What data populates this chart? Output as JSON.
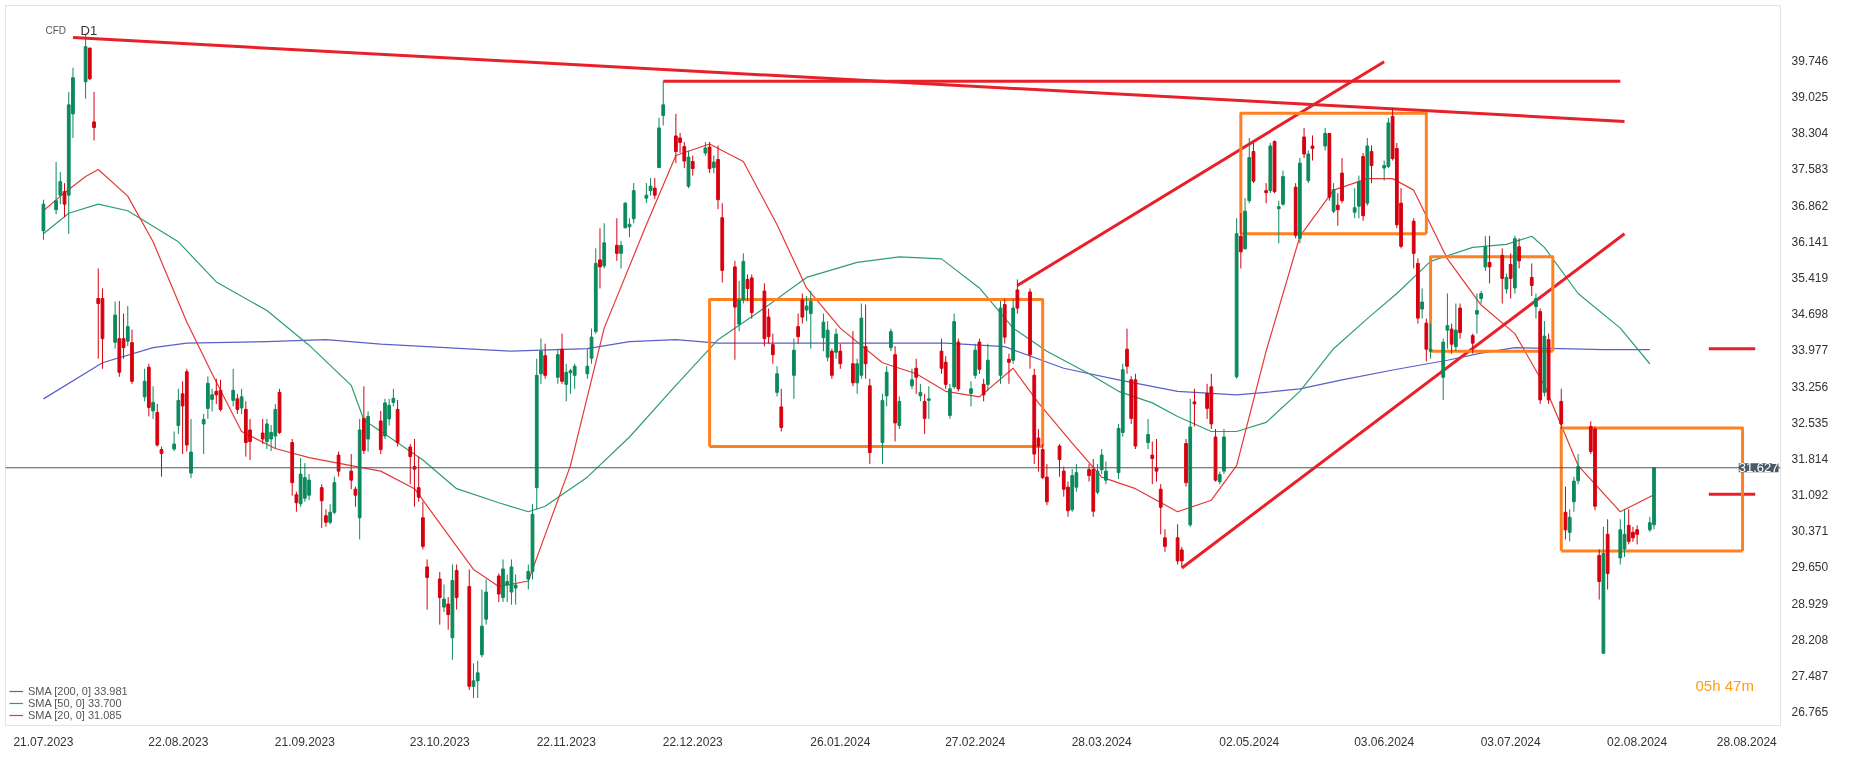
{
  "chart_data": {
    "type": "candlestick",
    "annotations": [
      "CFD",
      "D1",
      "05h 47m"
    ],
    "x": [
      "2023-07-21",
      "2023-07-24",
      "2023-07-25",
      "2023-07-26",
      "2023-07-27",
      "2023-07-28",
      "2023-07-31",
      "2023-08-01",
      "2023-08-02",
      "2023-08-03",
      "2023-08-04",
      "2023-08-07",
      "2023-08-08",
      "2023-08-09",
      "2023-08-10",
      "2023-08-11",
      "2023-08-14",
      "2023-08-15",
      "2023-08-16",
      "2023-08-17",
      "2023-08-18",
      "2023-08-21",
      "2023-08-22",
      "2023-08-23",
      "2023-08-24",
      "2023-08-25",
      "2023-08-28",
      "2023-08-29",
      "2023-08-30",
      "2023-08-31",
      "2023-09-01",
      "2023-09-04",
      "2023-09-05",
      "2023-09-06",
      "2023-09-07",
      "2023-09-08",
      "2023-09-11",
      "2023-09-12",
      "2023-09-13",
      "2023-09-14",
      "2023-09-15",
      "2023-09-18",
      "2023-09-19",
      "2023-09-20",
      "2023-09-21",
      "2023-09-22",
      "2023-09-25",
      "2023-09-26",
      "2023-09-27",
      "2023-09-28",
      "2023-09-29",
      "2023-10-02",
      "2023-10-03",
      "2023-10-04",
      "2023-10-05",
      "2023-10-06",
      "2023-10-09",
      "2023-10-10",
      "2023-10-11",
      "2023-10-12",
      "2023-10-13",
      "2023-10-16",
      "2023-10-17",
      "2023-10-18",
      "2023-10-19",
      "2023-10-20",
      "2023-10-23",
      "2023-10-24",
      "2023-10-25",
      "2023-10-26",
      "2023-10-27",
      "2023-10-30",
      "2023-10-31",
      "2023-11-01",
      "2023-11-02",
      "2023-11-03",
      "2023-11-06",
      "2023-11-07",
      "2023-11-08",
      "2023-11-09",
      "2023-11-10",
      "2023-11-13",
      "2023-11-14",
      "2023-11-15",
      "2023-11-16",
      "2023-11-17",
      "2023-11-20",
      "2023-11-21",
      "2023-11-22",
      "2023-11-23",
      "2023-11-24",
      "2023-11-27",
      "2023-11-28",
      "2023-11-29",
      "2023-11-30",
      "2023-12-01",
      "2023-12-04",
      "2023-12-05",
      "2023-12-06",
      "2023-12-07",
      "2023-12-08",
      "2023-12-11",
      "2023-12-12",
      "2023-12-13",
      "2023-12-14",
      "2023-12-15",
      "2023-12-18",
      "2023-12-19",
      "2023-12-20",
      "2023-12-21",
      "2023-12-22",
      "2023-12-25",
      "2023-12-26",
      "2023-12-27",
      "2023-12-28",
      "2023-12-29",
      "2024-01-01",
      "2024-01-02",
      "2024-01-03",
      "2024-01-04",
      "2024-01-05",
      "2024-01-08",
      "2024-01-09",
      "2024-01-10",
      "2024-01-11",
      "2024-01-12",
      "2024-01-15",
      "2024-01-16",
      "2024-01-17",
      "2024-01-18",
      "2024-01-19",
      "2024-01-22",
      "2024-01-23",
      "2024-01-24",
      "2024-01-25",
      "2024-01-26",
      "2024-01-29",
      "2024-01-30",
      "2024-01-31",
      "2024-02-01",
      "2024-02-02",
      "2024-02-05",
      "2024-02-06",
      "2024-02-07",
      "2024-02-08",
      "2024-02-09",
      "2024-02-12",
      "2024-02-13",
      "2024-02-14",
      "2024-02-15",
      "2024-02-16",
      "2024-02-19",
      "2024-02-20",
      "2024-02-21",
      "2024-02-22",
      "2024-02-23",
      "2024-02-26",
      "2024-02-27",
      "2024-02-28",
      "2024-02-29",
      "2024-03-01",
      "2024-03-04",
      "2024-03-05",
      "2024-03-06",
      "2024-03-07",
      "2024-03-08",
      "2024-03-11",
      "2024-03-12",
      "2024-03-13",
      "2024-03-14",
      "2024-03-15",
      "2024-03-18",
      "2024-03-19",
      "2024-03-20",
      "2024-03-21",
      "2024-03-22",
      "2024-03-25",
      "2024-03-26",
      "2024-03-27",
      "2024-03-28",
      "2024-03-29",
      "2024-04-01",
      "2024-04-02",
      "2024-04-03",
      "2024-04-04",
      "2024-04-05",
      "2024-04-08",
      "2024-04-09",
      "2024-04-10",
      "2024-04-11",
      "2024-04-12",
      "2024-04-15",
      "2024-04-16",
      "2024-04-17",
      "2024-04-18",
      "2024-04-19",
      "2024-04-22",
      "2024-04-23",
      "2024-04-24",
      "2024-04-25",
      "2024-04-26",
      "2024-04-29",
      "2024-04-30",
      "2024-05-01",
      "2024-05-02",
      "2024-05-03",
      "2024-05-06",
      "2024-05-07",
      "2024-05-08",
      "2024-05-09",
      "2024-05-10",
      "2024-05-13",
      "2024-05-14",
      "2024-05-15",
      "2024-05-16",
      "2024-05-17",
      "2024-05-20",
      "2024-05-21",
      "2024-05-22",
      "2024-05-23",
      "2024-05-24",
      "2024-05-27",
      "2024-05-28",
      "2024-05-29",
      "2024-05-30",
      "2024-05-31",
      "2024-06-03",
      "2024-06-04",
      "2024-06-05",
      "2024-06-06",
      "2024-06-07",
      "2024-06-10",
      "2024-06-11",
      "2024-06-12",
      "2024-06-13",
      "2024-06-14",
      "2024-06-17",
      "2024-06-18",
      "2024-06-19",
      "2024-06-20",
      "2024-06-21",
      "2024-06-24",
      "2024-06-25",
      "2024-06-26",
      "2024-06-27",
      "2024-06-28",
      "2024-07-01",
      "2024-07-02",
      "2024-07-03",
      "2024-07-04",
      "2024-07-05",
      "2024-07-08",
      "2024-07-09",
      "2024-07-10",
      "2024-07-11",
      "2024-07-12",
      "2024-07-15",
      "2024-07-16",
      "2024-07-17",
      "2024-07-18",
      "2024-07-19",
      "2024-07-22",
      "2024-07-23",
      "2024-07-24",
      "2024-07-25",
      "2024-07-26",
      "2024-07-29",
      "2024-07-30",
      "2024-07-31",
      "2024-08-01",
      "2024-08-02",
      "2024-08-05",
      "2024-08-06"
    ],
    "ohlc": [
      [
        36.35,
        36.97,
        36.17,
        36.88
      ],
      [
        36.77,
        37.72,
        36.68,
        36.95
      ],
      [
        37.06,
        37.52,
        36.88,
        37.33
      ],
      [
        37.13,
        37.3,
        36.62,
        36.88
      ],
      [
        37.06,
        39.12,
        36.29,
        38.86
      ],
      [
        38.68,
        39.6,
        38.2,
        39.4
      ],
      [
        39.32,
        40.25,
        38.98,
        40.02
      ],
      [
        39.99,
        40.0,
        39.35,
        39.38
      ],
      [
        38.52,
        39.12,
        38.15,
        38.41
      ],
      [
        35.0,
        35.6,
        33.8,
        34.9
      ],
      [
        35.0,
        35.2,
        33.6,
        34.2
      ],
      [
        34.13,
        34.94,
        34.0,
        34.67
      ],
      [
        34.2,
        34.95,
        33.44,
        33.53
      ],
      [
        34.2,
        34.7,
        33.8,
        34.02
      ],
      [
        34.15,
        34.85,
        34.05,
        34.44
      ],
      [
        34.12,
        34.38,
        33.3,
        33.35
      ],
      [
        33.04,
        33.6,
        32.95,
        33.35
      ],
      [
        33.63,
        33.7,
        32.65,
        32.83
      ],
      [
        32.76,
        33.25,
        32.6,
        32.93
      ],
      [
        32.73,
        32.9,
        32.05,
        32.08
      ],
      [
        31.99,
        32.05,
        31.45,
        31.91
      ],
      [
        32.0,
        32.35,
        31.96,
        32.1
      ],
      [
        32.47,
        33.2,
        32.3,
        32.97
      ],
      [
        33.1,
        33.35,
        31.9,
        32.86
      ],
      [
        33.54,
        33.6,
        31.95,
        32.08
      ],
      [
        31.52,
        32.6,
        31.42,
        31.94
      ],
      [
        32.5,
        32.7,
        31.9,
        32.59
      ],
      [
        32.81,
        33.45,
        32.6,
        33.31
      ],
      [
        32.99,
        33.2,
        32.75,
        33.08
      ],
      [
        33.15,
        33.4,
        32.9,
        33.08
      ],
      [
        33.17,
        33.38,
        32.75,
        32.79
      ],
      [
        32.97,
        33.6,
        32.85,
        33.17
      ],
      [
        33.0,
        33.1,
        32.7,
        32.79
      ],
      [
        32.82,
        33.2,
        32.7,
        33.04
      ],
      [
        32.79,
        32.95,
        31.85,
        32.13
      ],
      [
        32.38,
        32.6,
        31.78,
        32.15
      ],
      [
        32.32,
        32.6,
        32.1,
        32.2
      ],
      [
        32.15,
        32.6,
        32.0,
        32.5
      ],
      [
        32.2,
        32.48,
        31.96,
        32.33
      ],
      [
        32.26,
        32.9,
        32.0,
        32.79
      ],
      [
        33.13,
        33.2,
        32.3,
        32.33
      ],
      [
        32.13,
        32.2,
        31.07,
        31.33
      ],
      [
        31.09,
        31.15,
        30.75,
        30.93
      ],
      [
        30.91,
        31.82,
        30.85,
        31.5
      ],
      [
        31.02,
        31.72,
        30.95,
        31.43
      ],
      [
        31.08,
        31.5,
        30.98,
        31.38
      ],
      [
        31.23,
        31.3,
        30.43,
        30.97
      ],
      [
        30.67,
        30.8,
        30.45,
        30.54
      ],
      [
        30.54,
        30.9,
        30.5,
        30.74
      ],
      [
        30.74,
        31.45,
        30.7,
        31.33
      ],
      [
        31.88,
        31.95,
        31.45,
        31.56
      ],
      [
        31.56,
        31.9,
        31.2,
        31.38
      ],
      [
        31.2,
        31.25,
        30.85,
        31.08
      ],
      [
        30.63,
        32.6,
        30.2,
        32.38
      ],
      [
        32.61,
        33.25,
        31.9,
        31.97
      ],
      [
        32.2,
        32.75,
        31.95,
        32.65
      ],
      [
        32.56,
        32.76,
        31.9,
        31.99
      ],
      [
        32.26,
        33.0,
        32.2,
        32.92
      ],
      [
        32.6,
        33.0,
        32.47,
        32.87
      ],
      [
        32.93,
        33.2,
        32.85,
        33.01
      ],
      [
        32.79,
        32.98,
        32.05,
        32.13
      ],
      [
        32.04,
        32.1,
        31.3,
        31.85
      ],
      [
        31.65,
        32.2,
        30.85,
        31.6
      ],
      [
        31.23,
        31.85,
        30.95,
        31.04
      ],
      [
        30.63,
        30.95,
        30.0,
        30.06
      ],
      [
        29.65,
        29.8,
        28.8,
        29.44
      ],
      [
        29.41,
        29.55,
        28.5,
        29.04
      ],
      [
        28.85,
        29.3,
        28.75,
        29.01
      ],
      [
        28.91,
        29.05,
        28.4,
        28.7
      ],
      [
        28.24,
        29.7,
        27.8,
        29.38
      ],
      [
        29.58,
        29.7,
        28.8,
        29.04
      ],
      [
        29.26,
        29.6,
        27.2,
        27.27
      ],
      [
        27.27,
        27.73,
        27.04,
        27.38
      ],
      [
        27.38,
        27.78,
        27.04,
        27.54
      ],
      [
        27.9,
        29.2,
        27.85,
        28.47
      ],
      [
        28.61,
        29.4,
        28.5,
        29.15
      ],
      [
        29.47,
        29.52,
        28.95,
        29.11
      ],
      [
        29.04,
        29.8,
        28.95,
        29.61
      ],
      [
        29.29,
        29.5,
        28.95,
        29.36
      ],
      [
        29.15,
        29.8,
        28.9,
        29.65
      ],
      [
        29.23,
        29.5,
        28.9,
        29.29
      ],
      [
        29.41,
        29.7,
        29.2,
        29.56
      ],
      [
        29.56,
        30.9,
        29.4,
        30.7
      ],
      [
        31.23,
        33.8,
        30.8,
        33.47
      ],
      [
        33.5,
        34.2,
        33.3,
        33.95
      ],
      [
        33.86,
        34.1,
        33.4,
        33.47
      ],
      [
        33.43,
        34.0,
        33.3,
        33.88
      ],
      [
        33.99,
        34.3,
        33.3,
        33.35
      ],
      [
        33.29,
        33.7,
        32.95,
        33.53
      ],
      [
        33.52,
        33.6,
        33.1,
        33.56
      ],
      [
        33.47,
        33.7,
        33.2,
        33.65
      ],
      [
        33.5,
        34.0,
        33.4,
        33.65
      ],
      [
        33.81,
        34.4,
        33.7,
        34.23
      ],
      [
        34.34,
        36.0,
        34.3,
        35.7
      ],
      [
        35.77,
        36.4,
        35.2,
        35.63
      ],
      [
        35.65,
        36.5,
        35.6,
        36.11
      ],
      [
        36.06,
        36.6,
        35.75,
        35.9
      ],
      [
        35.9,
        36.15,
        35.6,
        36.06
      ],
      [
        36.41,
        36.92,
        36.4,
        36.9
      ],
      [
        36.43,
        36.6,
        36.22,
        36.48
      ],
      [
        36.59,
        37.3,
        36.5,
        37.15
      ],
      [
        37.0,
        37.3,
        36.9,
        37.06
      ],
      [
        37.15,
        37.4,
        37.05,
        37.24
      ],
      [
        37.2,
        37.4,
        36.98,
        37.06
      ],
      [
        37.61,
        38.6,
        37.6,
        38.4
      ],
      [
        38.65,
        39.33,
        38.45,
        38.86
      ],
      [
        38.24,
        38.68,
        37.7,
        37.93
      ],
      [
        38.2,
        38.3,
        37.9,
        38.11
      ],
      [
        38.03,
        38.12,
        37.6,
        37.74
      ],
      [
        37.24,
        37.95,
        37.2,
        37.82
      ],
      [
        37.73,
        37.85,
        37.45,
        37.59
      ],
      [
        37.9,
        38.12,
        37.85,
        38.0
      ],
      [
        38.02,
        38.12,
        37.5,
        37.59
      ],
      [
        37.61,
        37.85,
        37.5,
        37.72
      ],
      [
        37.77,
        38.05,
        36.78,
        36.97
      ],
      [
        36.61,
        36.9,
        35.32,
        35.56
      ],
      [
        35.63,
        35.75,
        33.78,
        34.83
      ],
      [
        34.49,
        35.35,
        34.35,
        34.97
      ],
      [
        34.97,
        35.9,
        34.9,
        35.74
      ],
      [
        35.38,
        35.48,
        34.95,
        35.2
      ],
      [
        35.41,
        35.48,
        34.6,
        34.72
      ],
      [
        35.15,
        35.3,
        34.05,
        34.2
      ],
      [
        34.63,
        34.8,
        34.1,
        34.24
      ],
      [
        34.08,
        34.3,
        33.7,
        33.88
      ],
      [
        33.13,
        33.65,
        33.05,
        33.5
      ],
      [
        32.84,
        33.2,
        32.35,
        32.43
      ],
      [
        33.47,
        34.2,
        33.0,
        33.97
      ],
      [
        34.44,
        34.7,
        34.1,
        34.24
      ],
      [
        34.97,
        35.1,
        34.5,
        34.63
      ],
      [
        34.77,
        35.05,
        34.55,
        34.85
      ],
      [
        34.7,
        35.15,
        34.0,
        34.94
      ],
      [
        34.22,
        34.7,
        33.95,
        34.53
      ],
      [
        33.83,
        34.55,
        33.75,
        34.37
      ],
      [
        33.95,
        34.0,
        33.4,
        33.47
      ],
      [
        33.93,
        34.4,
        33.8,
        34.29
      ],
      [
        33.95,
        34.1,
        33.6,
        33.7
      ],
      [
        33.7,
        34.35,
        33.25,
        33.32
      ],
      [
        33.32,
        33.8,
        33.1,
        33.7
      ],
      [
        33.47,
        34.9,
        33.4,
        34.61
      ],
      [
        34.04,
        34.88,
        33.4,
        33.7
      ],
      [
        33.26,
        33.4,
        31.7,
        31.93
      ],
      [
        32.13,
        33.1,
        31.7,
        32.97
      ],
      [
        33.06,
        33.65,
        32.85,
        33.53
      ],
      [
        34.02,
        34.4,
        33.95,
        34.34
      ],
      [
        33.88,
        34.05,
        32.15,
        32.52
      ],
      [
        32.47,
        33.05,
        32.4,
        32.95
      ],
      [
        33.26,
        33.6,
        33.2,
        33.38
      ],
      [
        33.61,
        33.8,
        33.1,
        33.43
      ],
      [
        33.06,
        33.3,
        32.95,
        33.13
      ],
      [
        32.95,
        33.1,
        32.3,
        32.61
      ],
      [
        32.97,
        33.25,
        32.6,
        33.0
      ],
      [
        33.95,
        34.2,
        33.5,
        33.61
      ],
      [
        33.73,
        33.85,
        33.2,
        33.29
      ],
      [
        32.67,
        33.3,
        32.6,
        33.2
      ],
      [
        33.24,
        34.7,
        33.2,
        34.54
      ],
      [
        34.13,
        34.2,
        33.15,
        33.2
      ],
      [
        33.11,
        33.35,
        32.85,
        33.2
      ],
      [
        33.47,
        34.1,
        33.4,
        33.97
      ],
      [
        34.13,
        34.2,
        33.5,
        33.59
      ],
      [
        33.29,
        33.4,
        32.95,
        33.08
      ],
      [
        33.29,
        34.1,
        33.15,
        33.77
      ],
      [
        33.47,
        34.95,
        33.3,
        34.81
      ],
      [
        34.88,
        35.0,
        34.1,
        34.23
      ],
      [
        33.79,
        33.9,
        33.3,
        33.73
      ],
      [
        33.77,
        35.0,
        33.7,
        34.81
      ],
      [
        35.17,
        35.38,
        34.7,
        34.81
      ],
      [
        35.13,
        35.2,
        33.6,
        33.88
      ],
      [
        33.47,
        33.6,
        31.7,
        31.9
      ],
      [
        32.22,
        32.4,
        31.55,
        32.06
      ],
      [
        31.99,
        32.1,
        31.4,
        31.43
      ],
      [
        31.44,
        31.7,
        30.88,
        30.95
      ],
      [
        32.06,
        32.1,
        31.45,
        31.79
      ],
      [
        31.56,
        31.65,
        31.05,
        31.2
      ],
      [
        31.24,
        31.35,
        30.65,
        30.77
      ],
      [
        30.79,
        31.6,
        30.75,
        31.47
      ],
      [
        31.24,
        31.7,
        31.15,
        31.53
      ],
      [
        31.59,
        31.7,
        31.35,
        31.47
      ],
      [
        31.59,
        31.8,
        30.65,
        30.76
      ],
      [
        31.14,
        31.7,
        31.1,
        31.56
      ],
      [
        31.59,
        32.0,
        31.5,
        31.88
      ],
      [
        31.38,
        31.75,
        31.3,
        31.56
      ],
      [
        31.53,
        32.5,
        31.4,
        32.41
      ],
      [
        32.33,
        33.7,
        32.25,
        33.58
      ],
      [
        33.99,
        34.4,
        33.5,
        33.65
      ],
      [
        33.38,
        33.45,
        32.5,
        32.61
      ],
      [
        33.38,
        33.5,
        32.0,
        32.06
      ],
      [
        32.13,
        32.6,
        32.0,
        32.29
      ],
      [
        31.88,
        32.15,
        31.3,
        31.81
      ],
      [
        31.63,
        32.2,
        31.35,
        31.56
      ],
      [
        31.2,
        31.3,
        30.3,
        30.84
      ],
      [
        30.23,
        30.4,
        29.95,
        30.06
      ],
      [
        30.23,
        30.5,
        29.7,
        29.77
      ],
      [
        29.99,
        30.05,
        29.65,
        29.77
      ],
      [
        32.11,
        32.2,
        31.25,
        31.33
      ],
      [
        30.49,
        33.0,
        30.45,
        32.44
      ],
      [
        32.94,
        33.2,
        32.45,
        32.9
      ],
      [
        33.11,
        33.3,
        32.6,
        32.81
      ],
      [
        33.24,
        33.5,
        32.4,
        32.5
      ],
      [
        32.24,
        32.4,
        31.35,
        31.38
      ],
      [
        31.35,
        31.55,
        31.3,
        31.49
      ],
      [
        31.56,
        32.4,
        31.5,
        32.24
      ],
      [
        33.44,
        36.6,
        33.4,
        36.29
      ],
      [
        36.24,
        36.7,
        35.6,
        35.93
      ],
      [
        35.99,
        37.0,
        35.98,
        36.74
      ],
      [
        36.95,
        38.2,
        36.9,
        37.81
      ],
      [
        37.93,
        38.1,
        37.3,
        37.34
      ],
      [
        37.15,
        37.3,
        36.9,
        37.11
      ],
      [
        37.15,
        38.1,
        37.1,
        38.04
      ],
      [
        38.13,
        38.15,
        37.1,
        37.13
      ],
      [
        36.79,
        36.95,
        36.1,
        36.83
      ],
      [
        36.88,
        37.55,
        36.85,
        37.43
      ],
      [
        37.22,
        37.3,
        36.2,
        36.26
      ],
      [
        36.2,
        37.8,
        36.1,
        37.7
      ],
      [
        38.22,
        38.4,
        37.8,
        37.88
      ],
      [
        37.35,
        37.95,
        37.3,
        37.88
      ],
      [
        38.04,
        38.25,
        37.75,
        37.99
      ],
      [
        38.04,
        38.4,
        37.95,
        38.29
      ],
      [
        38.29,
        38.3,
        36.95,
        37.02
      ],
      [
        36.74,
        37.3,
        36.7,
        37.17
      ],
      [
        36.86,
        37.1,
        36.45,
        36.77
      ],
      [
        37.5,
        37.8,
        36.9,
        36.95
      ],
      [
        36.72,
        37.2,
        36.6,
        36.81
      ],
      [
        36.84,
        37.45,
        36.6,
        37.33
      ],
      [
        37.83,
        37.9,
        36.55,
        36.65
      ],
      [
        36.9,
        38.2,
        36.85,
        38.04
      ],
      [
        37.93,
        38.05,
        37.3,
        37.65
      ],
      [
        37.6,
        37.75,
        37.35,
        37.65
      ],
      [
        37.63,
        38.6,
        37.6,
        38.5
      ],
      [
        38.63,
        38.8,
        37.75,
        37.79
      ],
      [
        37.99,
        38.1,
        36.4,
        36.47
      ],
      [
        36.9,
        37.2,
        36.0,
        36.04
      ],
      [
        36.54,
        36.6,
        35.6,
        35.9
      ],
      [
        35.7,
        35.8,
        34.5,
        34.61
      ],
      [
        34.79,
        35.2,
        34.6,
        34.93
      ],
      [
        34.51,
        34.6,
        33.75,
        33.99
      ],
      [
        33.95,
        34.5,
        33.8,
        33.99
      ],
      [
        33.43,
        34.2,
        32.98,
        34.13
      ],
      [
        34.37,
        35.1,
        34.0,
        34.46
      ],
      [
        34.39,
        34.5,
        33.9,
        34.09
      ],
      [
        34.04,
        34.9,
        33.95,
        34.37
      ],
      [
        34.81,
        34.9,
        34.2,
        34.32
      ],
      [
        34.26,
        34.3,
        33.9,
        34.11
      ],
      [
        34.69,
        35.1,
        34.3,
        34.76
      ],
      [
        35.0,
        35.15,
        34.9,
        35.1
      ],
      [
        35.63,
        36.25,
        35.55,
        36.03
      ],
      [
        35.72,
        36.25,
        35.3,
        35.63
      ],
      [
        35.86,
        36.0,
        34.9,
        35.4
      ],
      [
        35.19,
        35.5,
        35.1,
        35.42
      ],
      [
        35.68,
        35.9,
        35.0,
        35.4
      ],
      [
        35.21,
        36.25,
        35.1,
        36.19
      ],
      [
        36.03,
        36.2,
        35.6,
        35.75
      ],
      [
        35.42,
        35.7,
        35.05,
        35.26
      ],
      [
        34.84,
        35.1,
        34.6,
        35.0
      ],
      [
        34.74,
        34.8,
        32.9,
        32.98
      ],
      [
        33.13,
        34.55,
        33.05,
        34.25
      ],
      [
        34.18,
        34.3,
        32.9,
        32.98
      ],
      [
        32.95,
        33.2,
        32.4,
        32.5
      ],
      [
        30.74,
        31.25,
        30.2,
        30.39
      ],
      [
        30.34,
        30.8,
        30.16,
        30.64
      ],
      [
        30.95,
        31.45,
        30.75,
        31.36
      ],
      [
        31.37,
        31.9,
        31.3,
        31.65
      ],
      [
        32.45,
        32.55,
        31.9,
        31.95
      ],
      [
        32.4,
        32.45,
        30.78,
        30.86
      ],
      [
        29.88,
        30.0,
        29.0,
        29.36
      ],
      [
        27.93,
        30.45,
        27.92,
        29.92
      ],
      [
        30.3,
        30.6,
        29.2,
        29.52
      ],
      [
        29.83,
        30.6,
        29.7,
        30.39
      ],
      [
        30.01,
        30.8,
        29.85,
        30.3
      ],
      [
        30.48,
        30.8,
        30.1,
        30.16
      ],
      [
        30.34,
        30.45,
        30.15,
        30.23
      ],
      [
        30.39,
        30.48,
        30.1,
        30.3
      ],
      [
        30.39,
        30.65,
        30.35,
        30.53
      ],
      [
        30.49,
        31.627,
        30.4,
        31.627
      ]
    ],
    "series": [
      {
        "name": "SMA [200, 0] 33.981",
        "type": "line",
        "color": "#5a5fc8",
        "x": [
          "2023-07-21",
          "2023-08-04",
          "2023-08-16",
          "2023-08-24",
          "2023-09-12",
          "2023-09-26",
          "2023-10-09",
          "2023-11-09",
          "2023-11-27",
          "2023-12-07",
          "2023-12-18",
          "2023-12-28",
          "2024-01-11",
          "2024-01-24",
          "2024-02-07",
          "2024-02-20",
          "2024-03-05",
          "2024-03-19",
          "2024-04-01",
          "2024-04-15",
          "2024-04-29",
          "2024-05-06",
          "2024-05-14",
          "2024-05-24",
          "2024-06-06",
          "2024-06-18",
          "2024-06-26",
          "2024-07-04",
          "2024-07-15",
          "2024-07-25",
          "2024-08-05"
        ],
        "values": [
          33.0,
          33.72,
          34.02,
          34.11,
          34.14,
          34.18,
          34.09,
          33.95,
          34.0,
          34.14,
          34.18,
          34.11,
          34.11,
          34.11,
          34.11,
          34.11,
          34.04,
          33.61,
          33.38,
          33.15,
          33.08,
          33.13,
          33.2,
          33.38,
          33.59,
          33.77,
          33.91,
          34.02,
          34.0,
          33.98,
          33.98
        ]
      },
      {
        "name": "SMA [50, 0] 33.700",
        "type": "line",
        "color": "#2e9e6e",
        "x": [
          "2023-07-21",
          "2023-07-27",
          "2023-08-03",
          "2023-08-10",
          "2023-08-22",
          "2023-08-31",
          "2023-09-12",
          "2023-09-22",
          "2023-10-02",
          "2023-10-05",
          "2023-10-11",
          "2023-10-19",
          "2023-10-27",
          "2023-11-06",
          "2023-11-13",
          "2023-11-17",
          "2023-11-27",
          "2023-12-07",
          "2023-12-18",
          "2023-12-28",
          "2024-01-09",
          "2024-01-18",
          "2024-01-30",
          "2024-02-09",
          "2024-02-19",
          "2024-02-28",
          "2024-03-07",
          "2024-03-15",
          "2024-03-25",
          "2024-04-01",
          "2024-04-09",
          "2024-04-15",
          "2024-04-23",
          "2024-04-29",
          "2024-05-06",
          "2024-05-14",
          "2024-05-22",
          "2024-05-30",
          "2024-06-06",
          "2024-06-14",
          "2024-06-24",
          "2024-07-02",
          "2024-07-08",
          "2024-07-11",
          "2024-07-19",
          "2024-07-29",
          "2024-08-05"
        ],
        "values": [
          36.29,
          36.7,
          36.88,
          36.75,
          36.13,
          35.33,
          34.76,
          34.07,
          33.27,
          32.58,
          32.24,
          31.78,
          31.21,
          30.93,
          30.75,
          30.86,
          31.44,
          32.24,
          33.27,
          34.18,
          34.87,
          35.42,
          35.72,
          35.83,
          35.79,
          35.21,
          34.41,
          33.95,
          33.5,
          33.15,
          32.92,
          32.65,
          32.35,
          32.35,
          32.53,
          33.15,
          34.0,
          34.6,
          35.1,
          35.74,
          36.02,
          36.08,
          36.24,
          36.02,
          35.1,
          34.41,
          33.7
        ]
      },
      {
        "name": "SMA [20, 0] 31.085",
        "type": "line",
        "color": "#e53935",
        "x": [
          "2023-07-21",
          "2023-07-26",
          "2023-07-31",
          "2023-08-03",
          "2023-08-10",
          "2023-08-16",
          "2023-08-24",
          "2023-08-30",
          "2023-09-06",
          "2023-09-14",
          "2023-09-22",
          "2023-10-02",
          "2023-10-09",
          "2023-10-17",
          "2023-10-25",
          "2023-10-31",
          "2023-11-06",
          "2023-11-13",
          "2023-11-17",
          "2023-11-23",
          "2023-12-01",
          "2023-12-11",
          "2023-12-18",
          "2023-12-26",
          "2024-01-03",
          "2024-01-11",
          "2024-01-18",
          "2024-01-26",
          "2024-02-05",
          "2024-02-13",
          "2024-02-20",
          "2024-02-28",
          "2024-03-07",
          "2024-03-13",
          "2024-03-21",
          "2024-03-28",
          "2024-04-05",
          "2024-04-15",
          "2024-04-23",
          "2024-04-29",
          "2024-05-06",
          "2024-05-14",
          "2024-05-22",
          "2024-05-30",
          "2024-06-05",
          "2024-06-10",
          "2024-06-18",
          "2024-06-26",
          "2024-07-04",
          "2024-07-11",
          "2024-07-19",
          "2024-07-29",
          "2024-08-06"
        ],
        "values": [
          36.75,
          37.11,
          37.43,
          37.57,
          37.04,
          36.13,
          34.53,
          33.5,
          32.35,
          32.01,
          31.83,
          31.67,
          31.56,
          31.21,
          30.29,
          29.6,
          29.26,
          29.37,
          30.29,
          31.67,
          34.41,
          36.47,
          37.85,
          38.08,
          37.73,
          36.47,
          35.21,
          34.41,
          33.72,
          33.5,
          33.15,
          33.04,
          33.61,
          32.92,
          32.12,
          31.44,
          31.21,
          30.75,
          30.98,
          31.67,
          33.95,
          36.24,
          37.16,
          37.39,
          37.39,
          37.16,
          35.79,
          34.87,
          34.3,
          33.27,
          31.67,
          30.75,
          31.09
        ]
      },
      {
        "type": "line",
        "color": "#e8202a",
        "x": [
          "2023-07-28",
          "2024-07-30"
        ],
        "values": [
          40.2,
          38.53
        ]
      },
      {
        "type": "line",
        "color": "#e8202a",
        "x": [
          "2023-12-15",
          "2024-07-29"
        ],
        "values": [
          39.33,
          39.33
        ]
      },
      {
        "type": "line",
        "color": "#e8202a",
        "x": [
          "2024-03-08",
          "2024-06-03"
        ],
        "values": [
          35.26,
          39.72
        ]
      },
      {
        "type": "line",
        "color": "#e8202a",
        "x": [
          "2024-04-16",
          "2024-07-30"
        ],
        "values": [
          29.63,
          36.29
        ]
      },
      {
        "type": "line",
        "color": "#e8202a",
        "x": [
          "2024-08-19",
          "2024-08-30"
        ],
        "values": [
          34.0,
          34.0
        ]
      },
      {
        "type": "line",
        "color": "#e8202a",
        "x": [
          "2024-08-19",
          "2024-08-30"
        ],
        "values": [
          31.1,
          31.1
        ]
      },
      {
        "type": "line",
        "color": "#ff8020",
        "x": [
          "2023-12-26",
          "2023-12-26",
          "2024-03-14",
          "2024-03-14"
        ],
        "values": [
          32.05,
          34.98,
          34.98,
          32.05
        ]
      },
      {
        "type": "line",
        "color": "#ff8020",
        "x": [
          "2023-12-26",
          "2024-03-14"
        ],
        "values": [
          32.05,
          32.05
        ]
      },
      {
        "type": "line",
        "color": "#ff8020",
        "x": [
          "2024-04-30",
          "2024-04-30",
          "2024-06-13",
          "2024-06-13"
        ],
        "values": [
          36.29,
          38.69,
          38.69,
          36.29
        ]
      },
      {
        "type": "line",
        "color": "#ff8020",
        "x": [
          "2024-04-30",
          "2024-06-13"
        ],
        "values": [
          36.29,
          36.29
        ]
      },
      {
        "type": "line",
        "color": "#ff8020",
        "x": [
          "2024-06-14",
          "2024-06-14",
          "2024-07-13",
          "2024-07-13"
        ],
        "values": [
          33.95,
          35.83,
          35.83,
          33.95
        ]
      },
      {
        "type": "line",
        "color": "#ff8020",
        "x": [
          "2024-06-14",
          "2024-07-13"
        ],
        "values": [
          33.95,
          33.95
        ]
      },
      {
        "type": "line",
        "color": "#ff8020",
        "x": [
          "2024-07-15",
          "2024-07-15",
          "2024-08-27",
          "2024-08-27"
        ],
        "values": [
          29.97,
          32.42,
          32.42,
          29.97
        ]
      },
      {
        "type": "line",
        "color": "#ff8020",
        "x": [
          "2024-07-15",
          "2024-08-27"
        ],
        "values": [
          29.97,
          29.97
        ]
      }
    ],
    "ref_lines": [
      {
        "axis": "y",
        "value": 31.627,
        "label": "31.627",
        "color": "#4a5a66"
      }
    ],
    "xlim": [
      "2023-07-12",
      "2024-09-05"
    ],
    "ylim": [
      26.49,
      40.84
    ],
    "xticks": [
      {
        "value": "2023-07-21",
        "label": "21.07.2023"
      },
      {
        "value": "2023-08-22",
        "label": "22.08.2023"
      },
      {
        "value": "2023-09-21",
        "label": "21.09.2023"
      },
      {
        "value": "2023-10-23",
        "label": "23.10.2023"
      },
      {
        "value": "2023-11-22",
        "label": "22.11.2023"
      },
      {
        "value": "2023-12-22",
        "label": "22.12.2023"
      },
      {
        "value": "2024-01-26",
        "label": "26.01.2024"
      },
      {
        "value": "2024-02-27",
        "label": "27.02.2024"
      },
      {
        "value": "2024-03-28",
        "label": "28.03.2024"
      },
      {
        "value": "2024-05-02",
        "label": "02.05.2024"
      },
      {
        "value": "2024-06-03",
        "label": "03.06.2024"
      },
      {
        "value": "2024-07-03",
        "label": "03.07.2024"
      },
      {
        "value": "2024-08-02",
        "label": "02.08.2024"
      },
      {
        "value": "2024-08-28",
        "label": "28.08.2024"
      }
    ],
    "yticks": [
      26.765,
      27.487,
      28.208,
      28.929,
      {
        "value": 29.65,
        "label": "29.650"
      },
      30.371,
      31.092,
      31.814,
      32.535,
      33.256,
      33.977,
      34.698,
      35.419,
      36.141,
      36.862,
      37.583,
      38.304,
      39.025,
      39.746
    ],
    "legend": "bottom left"
  }
}
